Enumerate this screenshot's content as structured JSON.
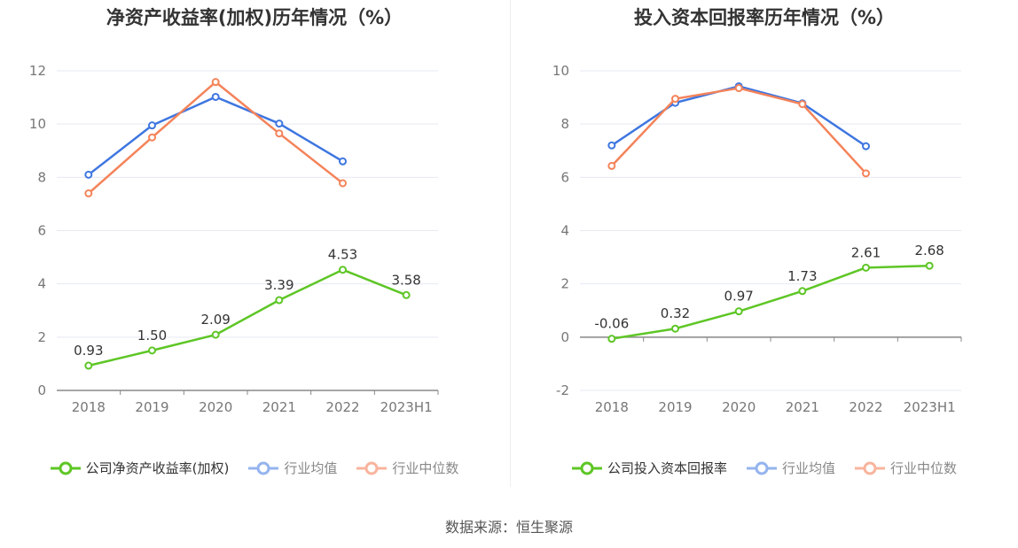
{
  "colors": {
    "company": "#5ec626",
    "avg": "#3e76e0",
    "median": "#f4835a",
    "avg_legend": "#95b4ee",
    "median_legend": "#f8b49d"
  },
  "source": "数据来源：恒生聚源",
  "chart_data": [
    {
      "type": "line",
      "title": "净资产收益率(加权)历年情况（%）",
      "categories": [
        "2018",
        "2019",
        "2020",
        "2021",
        "2022",
        "2023H1"
      ],
      "ylim": [
        0,
        12
      ],
      "yticks": [
        0,
        2,
        4,
        6,
        8,
        10,
        12
      ],
      "grid": true,
      "legend_position": "bottom",
      "series": [
        {
          "name": "公司净资产收益率(加权)",
          "color_key": "company",
          "labels": true,
          "values": [
            0.93,
            1.5,
            2.09,
            3.39,
            4.53,
            3.58
          ],
          "value_labels": [
            "0.93",
            "1.50",
            "2.09",
            "3.39",
            "4.53",
            "3.58"
          ]
        },
        {
          "name": "行业均值",
          "color_key": "avg",
          "labels": false,
          "values": [
            8.1,
            9.95,
            11.02,
            10.02,
            8.6,
            null
          ]
        },
        {
          "name": "行业中位数",
          "color_key": "median",
          "labels": false,
          "values": [
            7.4,
            9.5,
            11.58,
            9.65,
            7.78,
            null
          ]
        }
      ]
    },
    {
      "type": "line",
      "title": "投入资本回报率历年情况（%）",
      "categories": [
        "2018",
        "2019",
        "2020",
        "2021",
        "2022",
        "2023H1"
      ],
      "ylim": [
        -2,
        10
      ],
      "yticks": [
        -2,
        0,
        2,
        4,
        6,
        8,
        10
      ],
      "grid": true,
      "legend_position": "bottom",
      "series": [
        {
          "name": "公司投入资本回报率",
          "color_key": "company",
          "labels": true,
          "values": [
            -0.06,
            0.32,
            0.97,
            1.73,
            2.61,
            2.68
          ],
          "value_labels": [
            "-0.06",
            "0.32",
            "0.97",
            "1.73",
            "2.61",
            "2.68"
          ]
        },
        {
          "name": "行业均值",
          "color_key": "avg",
          "labels": false,
          "values": [
            7.2,
            8.8,
            9.42,
            8.78,
            7.17,
            null
          ]
        },
        {
          "name": "行业中位数",
          "color_key": "median",
          "labels": false,
          "values": [
            6.43,
            8.95,
            9.35,
            8.75,
            6.15,
            null
          ]
        }
      ]
    }
  ]
}
